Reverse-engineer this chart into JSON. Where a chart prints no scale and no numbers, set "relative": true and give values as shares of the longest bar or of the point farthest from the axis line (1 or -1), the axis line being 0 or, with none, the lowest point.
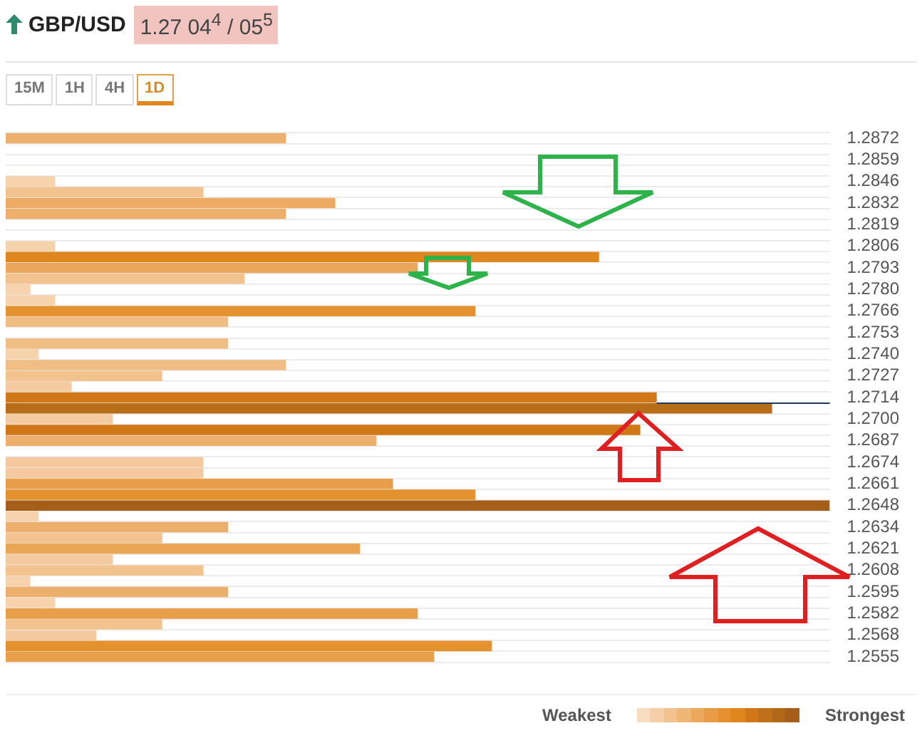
{
  "chart_data": {
    "type": "bar",
    "orientation": "horizontal",
    "relative": true,
    "title": "GBP/USD",
    "subtitle": "1.27 04$^{4}$ / 05$^{5}$",
    "categories": [
      "1.2872",
      null,
      "1.2859",
      null,
      "1.2846",
      null,
      "1.2832",
      null,
      "1.2819",
      null,
      "1.2806",
      null,
      "1.2793",
      null,
      "1.2780",
      null,
      "1.2766",
      null,
      "1.2753",
      null,
      "1.2740",
      null,
      "1.2727",
      null,
      "1.2714",
      null,
      "1.2700",
      null,
      "1.2687",
      null,
      "1.2674",
      null,
      "1.2661",
      null,
      "1.2648",
      null,
      "1.2634",
      null,
      "1.2621",
      null,
      "1.2608",
      null,
      "1.2595",
      null,
      "1.2582",
      null,
      "1.2568",
      null,
      "1.2555"
    ],
    "values": [
      0.34,
      null,
      null,
      null,
      0.06,
      0.24,
      0.4,
      0.34,
      null,
      null,
      0.06,
      0.72,
      0.5,
      0.29,
      0.03,
      0.06,
      0.57,
      0.27,
      null,
      0.27,
      0.04,
      0.34,
      0.19,
      0.08,
      0.79,
      0.93,
      0.13,
      0.77,
      0.45,
      null,
      0.24,
      0.24,
      0.47,
      0.57,
      1,
      0.04,
      0.27,
      0.19,
      0.43,
      0.13,
      0.24,
      0.03,
      0.27,
      0.06,
      0.5,
      0.19,
      0.11,
      0.59,
      0.52
    ],
    "colors": [
      "#edb06c",
      null,
      null,
      null,
      "#f6d2ad",
      "#f2c28f",
      "#ecaa62",
      "#edb06c",
      null,
      null,
      "#f6d2ad",
      "#e0861f",
      "#eba85c",
      "#f2c28f",
      "#f6d2ad",
      "#f6d2ad",
      "#e3922f",
      "#f0bd84",
      null,
      "#f0bd84",
      "#f6d2ad",
      "#f0bd84",
      "#f2c28f",
      "#f4cba0",
      "#d07818",
      "#b86d18",
      "#f4cba0",
      "#d07818",
      "#edb06c",
      null,
      "#f4c9a0",
      "#f4c9a0",
      "#e99f4a",
      "#e3922f",
      "#a55f18",
      "#f6d2ad",
      "#edb06c",
      "#f2c28f",
      "#eaa655",
      "#f4cba0",
      "#f2c28f",
      "#f6d2ad",
      "#edb06c",
      "#f6d2ad",
      "#e99f4a",
      "#f2c28f",
      "#f4cba0",
      "#e3922f",
      "#e99f4a"
    ],
    "grid": "y",
    "ref_lines": [
      {
        "axis": "y",
        "value": "1.2714",
        "color": "#1f3a5a"
      }
    ],
    "annotations": [
      "15M",
      "1H",
      "4H",
      "1D",
      "Weakest",
      "Strongest"
    ]
  }
}
